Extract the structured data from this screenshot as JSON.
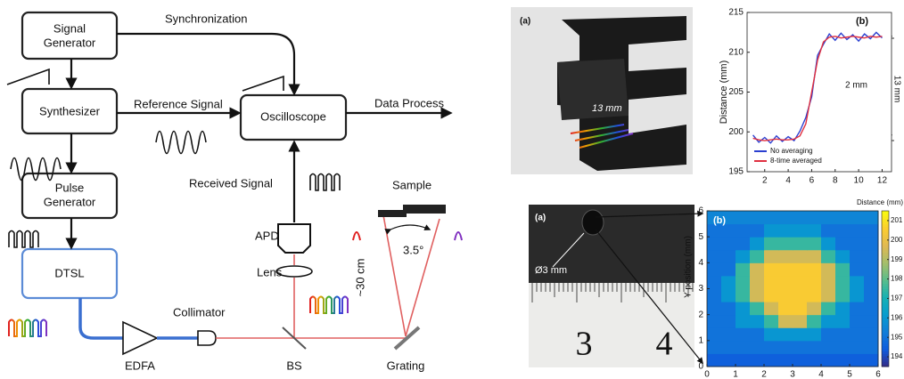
{
  "diagram": {
    "signal_generator": [
      "Signal",
      "Generator"
    ],
    "synchronization": "Synchronization",
    "synthesizer": "Synthesizer",
    "reference_signal": "Reference Signal",
    "oscilloscope": "Oscilloscope",
    "data_process": "Data Process",
    "pulse_generator": [
      "Pulse",
      "Generator"
    ],
    "dtsl": "DTSL",
    "received_signal": "Received Signal",
    "sample": "Sample",
    "apd": "APD",
    "lens": "Lens",
    "distance": "~30 cm",
    "angle": "3.5°",
    "collimator": "Collimator",
    "edfa": "EDFA",
    "bs": "BS",
    "grating": "Grating"
  },
  "photos": [
    {
      "panel": "(a)",
      "label": "13 mm"
    },
    {
      "panel": "(a)",
      "label": "Ø3 mm",
      "ruler": [
        "3",
        "4"
      ]
    }
  ],
  "chart_data": [
    {
      "type": "line",
      "panel": "(b)",
      "y_label": "Distance (mm)",
      "annotations": [
        "2 mm",
        "13 mm"
      ],
      "x": [
        1,
        1.5,
        2,
        2.5,
        3,
        3.5,
        4,
        4.5,
        5,
        5.5,
        6,
        6.5,
        7,
        7.5,
        8,
        8.5,
        9,
        9.5,
        10,
        10.5,
        11,
        11.5,
        12
      ],
      "series": [
        {
          "name": "No averaging",
          "color": "#2a3fd0",
          "values": [
            199.6,
            198.7,
            199.3,
            198.6,
            199.5,
            198.8,
            199.4,
            198.9,
            200.1,
            201.8,
            204.4,
            209.6,
            211,
            212.3,
            211.5,
            212.4,
            211.6,
            212.2,
            211.4,
            212.3,
            211.7,
            212.5,
            211.8
          ]
        },
        {
          "name": "8-time averaged",
          "color": "#e03040",
          "values": [
            199.2,
            199,
            198.9,
            199,
            199.1,
            199,
            199,
            199.1,
            199.5,
            201,
            205,
            209,
            211.3,
            211.9,
            212,
            211.8,
            211.9,
            212,
            211.9,
            211.8,
            212,
            211.9,
            212
          ]
        }
      ],
      "xlim": [
        0.5,
        12.8
      ],
      "xticks": [
        2,
        4,
        6,
        8,
        10,
        12
      ],
      "ylim": [
        195,
        215
      ],
      "yticks": [
        195,
        200,
        205,
        210,
        215
      ]
    },
    {
      "type": "heatmap",
      "panel": "(b)",
      "y_label": "Y position (mm)",
      "colorbar_label": "Distance (mm)",
      "xlim": [
        0,
        6
      ],
      "xticks": [
        0,
        1,
        2,
        3,
        4,
        5,
        6
      ],
      "ylim": [
        0,
        6
      ],
      "yticks": [
        0,
        1,
        2,
        3,
        4,
        5,
        6
      ],
      "clim": [
        193.5,
        201.5
      ],
      "cticks": [
        194,
        195,
        196,
        197,
        198,
        199,
        200,
        201
      ],
      "z": [
        [
          194.5,
          194.5,
          194.5,
          194.5,
          194.5,
          194.5,
          194.5,
          194.5,
          194.5,
          194.5,
          194.5,
          194.5
        ],
        [
          195,
          195,
          195,
          195,
          195,
          195,
          195,
          195,
          195,
          195,
          195,
          195
        ],
        [
          195,
          195,
          195,
          195,
          196,
          196,
          196,
          196,
          195,
          195,
          195,
          195
        ],
        [
          195,
          195,
          196,
          196,
          197.5,
          199.5,
          199.5,
          197.5,
          196,
          196,
          195,
          195
        ],
        [
          195,
          195,
          196,
          197.5,
          199.5,
          200.5,
          200.5,
          199.5,
          197.5,
          196,
          195,
          195
        ],
        [
          195,
          196,
          197.5,
          199.5,
          200.5,
          200.5,
          200.5,
          200.5,
          199.5,
          197.5,
          196,
          195
        ],
        [
          195,
          196,
          197.5,
          199.5,
          200.5,
          200.5,
          200.5,
          200.5,
          199.5,
          197.5,
          196,
          195
        ],
        [
          195,
          195,
          197.5,
          199.5,
          200.5,
          200.5,
          200.5,
          200.5,
          199.5,
          197.5,
          195,
          195
        ],
        [
          195,
          195,
          196,
          197.5,
          199.5,
          199.5,
          199.5,
          199.5,
          197.5,
          196,
          195,
          195
        ],
        [
          195,
          195,
          195,
          196,
          197.5,
          197.5,
          197.5,
          197.5,
          196,
          195,
          195,
          195
        ],
        [
          195,
          195,
          195,
          195,
          196,
          196,
          196,
          196,
          195,
          195,
          195,
          195
        ],
        [
          195.5,
          195.5,
          195.5,
          195.5,
          195.5,
          195.5,
          195.5,
          195.5,
          195.5,
          195.5,
          195.5,
          195.5
        ]
      ]
    }
  ]
}
